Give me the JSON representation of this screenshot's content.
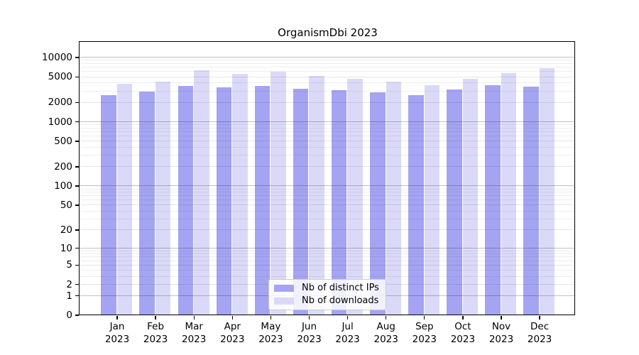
{
  "figure": {
    "title": "OrganismDbi 2023"
  },
  "chart_data": {
    "type": "bar",
    "title": "OrganismDbi 2023",
    "categories": [
      "Jan 2023",
      "Feb 2023",
      "Mar 2023",
      "Apr 2023",
      "May 2023",
      "Jun 2023",
      "Jul 2023",
      "Aug 2023",
      "Sep 2023",
      "Oct 2023",
      "Nov 2023",
      "Dec 2023"
    ],
    "series": [
      {
        "name": "Nb of distinct IPs",
        "color": "#a4a4f2",
        "values": [
          2550,
          2900,
          3600,
          3400,
          3550,
          3250,
          3050,
          2850,
          2550,
          3100,
          3620,
          3480
        ]
      },
      {
        "name": "Nb of downloads",
        "color": "#dadaf8",
        "values": [
          3850,
          4200,
          6250,
          5450,
          5950,
          5050,
          4550,
          4200,
          3670,
          4600,
          5650,
          6650
        ]
      }
    ],
    "xlabel": "",
    "ylabel": "",
    "y_scale": "log1p",
    "y_ticks": [
      0,
      1,
      2,
      5,
      10,
      20,
      50,
      100,
      200,
      500,
      1000,
      2000,
      5000,
      10000
    ],
    "ylim": [
      0,
      10000
    ],
    "grid": true,
    "legend_position": "lower center"
  },
  "colors": {
    "background": "#ffffff",
    "axis": "#000000",
    "bar_distinct_ips": "#a4a4f2",
    "bar_downloads": "#dadaf8"
  }
}
